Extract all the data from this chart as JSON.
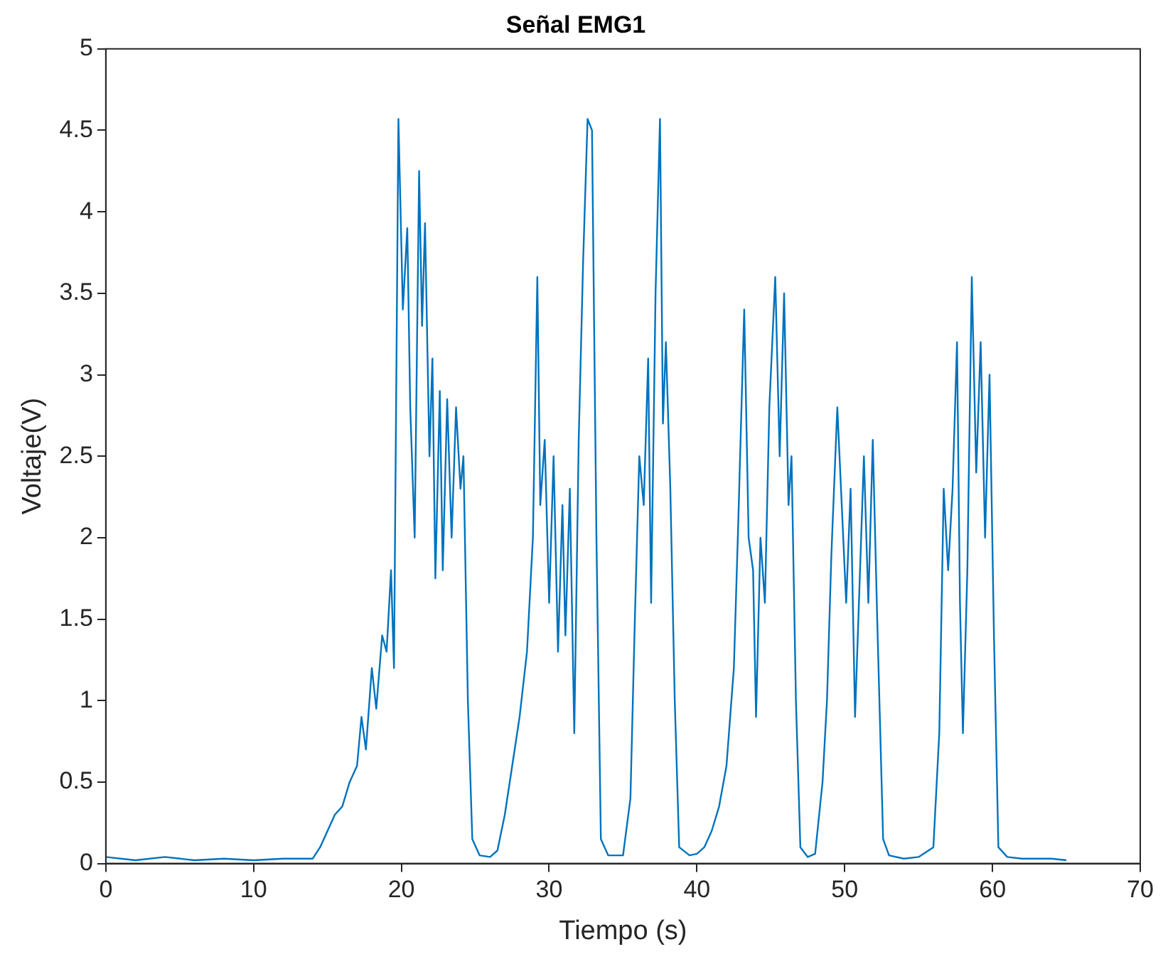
{
  "chart_data": {
    "type": "line",
    "title": "Señal EMG1",
    "xlabel": "Tiempo (s)",
    "ylabel": "Voltaje(V)",
    "xlim": [
      0,
      70
    ],
    "xticks": [
      0,
      10,
      20,
      30,
      40,
      50,
      60,
      70
    ],
    "ylim": [
      0,
      5
    ],
    "yticks": [
      0,
      0.5,
      1,
      1.5,
      2,
      2.5,
      3,
      3.5,
      4,
      4.5,
      5
    ],
    "grid": false,
    "legend": false,
    "marker": "none",
    "line_style": "solid",
    "series": [
      {
        "color": "#0072bd",
        "x": [
          0,
          2,
          4,
          6,
          8,
          10,
          12,
          14,
          14.5,
          15,
          15.5,
          16,
          16.5,
          17,
          17.3,
          17.6,
          18,
          18.3,
          18.7,
          19,
          19.3,
          19.5,
          19.8,
          20.1,
          20.4,
          20.6,
          20.9,
          21.2,
          21.4,
          21.6,
          21.9,
          22.1,
          22.3,
          22.6,
          22.8,
          23.1,
          23.4,
          23.7,
          24,
          24.2,
          24.5,
          24.8,
          25.3,
          26,
          26.5,
          27,
          27.5,
          28,
          28.5,
          28.9,
          29.2,
          29.4,
          29.7,
          30,
          30.3,
          30.6,
          30.9,
          31.1,
          31.4,
          31.7,
          32,
          32.3,
          32.6,
          32.9,
          33.2,
          33.5,
          34,
          35,
          35.5,
          35.8,
          36.1,
          36.4,
          36.7,
          36.9,
          37.2,
          37.5,
          37.7,
          37.9,
          38.2,
          38.5,
          38.8,
          39.5,
          40,
          40.5,
          41,
          41.5,
          42,
          42.5,
          42.8,
          43.2,
          43.5,
          43.8,
          44,
          44.3,
          44.6,
          44.9,
          45.3,
          45.6,
          45.9,
          46.2,
          46.4,
          46.7,
          47,
          47.5,
          48,
          48.5,
          48.8,
          49.1,
          49.5,
          49.8,
          50.1,
          50.4,
          50.7,
          51,
          51.3,
          51.6,
          51.9,
          52.2,
          52.6,
          53,
          54,
          55,
          56,
          56.4,
          56.7,
          57,
          57.3,
          57.6,
          57.8,
          58,
          58.3,
          58.6,
          58.9,
          59.2,
          59.5,
          59.8,
          60.1,
          60.4,
          61,
          62,
          63,
          64,
          65
        ],
        "values": [
          0.04,
          0.02,
          0.04,
          0.02,
          0.03,
          0.02,
          0.03,
          0.03,
          0.1,
          0.2,
          0.3,
          0.35,
          0.5,
          0.6,
          0.9,
          0.7,
          1.2,
          0.95,
          1.4,
          1.3,
          1.8,
          1.2,
          4.57,
          3.4,
          3.9,
          2.8,
          2,
          4.25,
          3.3,
          3.93,
          2.5,
          3.1,
          1.75,
          2.9,
          1.8,
          2.85,
          2,
          2.8,
          2.3,
          2.5,
          1,
          0.15,
          0.05,
          0.04,
          0.08,
          0.3,
          0.6,
          0.9,
          1.3,
          2,
          3.6,
          2.2,
          2.6,
          1.6,
          2.5,
          1.3,
          2.2,
          1.4,
          2.3,
          0.8,
          2.6,
          3.7,
          4.57,
          4.5,
          2,
          0.15,
          0.05,
          0.05,
          0.4,
          1.5,
          2.5,
          2.2,
          3.1,
          1.6,
          3.5,
          4.57,
          2.7,
          3.2,
          2.3,
          1,
          0.1,
          0.05,
          0.06,
          0.1,
          0.2,
          0.35,
          0.6,
          1.2,
          2.1,
          3.4,
          2,
          1.8,
          0.9,
          2,
          1.6,
          2.8,
          3.6,
          2.5,
          3.5,
          2.2,
          2.5,
          1,
          0.1,
          0.04,
          0.06,
          0.5,
          1,
          1.9,
          2.8,
          2.2,
          1.6,
          2.3,
          0.9,
          1.7,
          2.5,
          1.6,
          2.6,
          1.5,
          0.15,
          0.05,
          0.03,
          0.04,
          0.1,
          0.8,
          2.3,
          1.8,
          2.3,
          3.2,
          1.6,
          0.8,
          1.8,
          3.6,
          2.4,
          3.2,
          2,
          3,
          1.4,
          0.1,
          0.04,
          0.03,
          0.03,
          0.03,
          0.02
        ]
      }
    ]
  }
}
